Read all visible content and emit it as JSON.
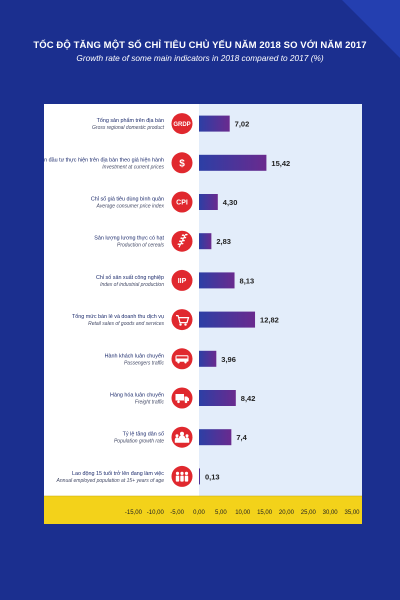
{
  "title_vi": "TỐC ĐỘ TĂNG MỘT SỐ CHỈ TIÊU CHỦ YẾU NĂM 2018 SO VỚI NĂM 2017",
  "title_en": "Growth rate of some main indicators in 2018 compared to 2017 (%)",
  "colors": {
    "background": "#1b2f8f",
    "bar_start": "#2c3fa5",
    "bar_end": "#6a2a8e",
    "icon_red": "#e0282e",
    "axis_band": "#f3d21a",
    "highlight_column": "#e3edfa"
  },
  "chart_data": {
    "type": "bar",
    "orientation": "horizontal",
    "title": "TỐC ĐỘ TĂNG MỘT SỐ CHỈ TIÊU CHỦ YẾU NĂM 2018 SO VỚI NĂM 2017",
    "subtitle": "Growth rate of some main indicators in 2018 compared to 2017 (%)",
    "xlim": [
      -15,
      35
    ],
    "ticks": [
      "-15,00",
      "-10,00",
      "-5,00",
      "0,00",
      "5,00",
      "10,00",
      "15,00",
      "20,00",
      "25,00",
      "30,00",
      "35,00"
    ],
    "grid": false,
    "items": [
      {
        "label_vi": "Tổng sản phẩm trên địa bàn",
        "label_en": "Gross regional domestic product",
        "icon": "grdp-icon",
        "icon_text": "GRDP",
        "value": 7.02,
        "value_label": "7,02"
      },
      {
        "label_vi": "Vốn đầu tư thực hiện trên địa bàn theo giá hiện hành",
        "label_en": "Investment at current prices",
        "icon": "money-bag-icon",
        "icon_text": "$",
        "value": 15.42,
        "value_label": "15,42"
      },
      {
        "label_vi": "Chỉ số giá tiêu dùng bình quân",
        "label_en": "Average consumer price index",
        "icon": "cpi-icon",
        "icon_text": "CPI",
        "value": 4.3,
        "value_label": "4,30"
      },
      {
        "label_vi": "Sản lượng lương thực có hạt",
        "label_en": "Production of cereals",
        "icon": "grain-icon",
        "icon_text": "",
        "value": 2.83,
        "value_label": "2,83"
      },
      {
        "label_vi": "Chỉ số sản xuất công nghiệp",
        "label_en": "Index of industrial production",
        "icon": "iip-icon",
        "icon_text": "IIP",
        "value": 8.13,
        "value_label": "8,13"
      },
      {
        "label_vi": "Tổng mức bán lẻ và doanh thu dịch vụ",
        "label_en": "Retail sales of goods and services",
        "icon": "shopping-cart-icon",
        "icon_text": "",
        "value": 12.82,
        "value_label": "12,82"
      },
      {
        "label_vi": "Hành khách luân chuyển",
        "label_en": "Passengers traffic",
        "icon": "bus-icon",
        "icon_text": "",
        "value": 3.96,
        "value_label": "3,96"
      },
      {
        "label_vi": "Hàng hóa luân chuyển",
        "label_en": "Freight traffic",
        "icon": "truck-icon",
        "icon_text": "",
        "value": 8.42,
        "value_label": "8,42"
      },
      {
        "label_vi": "Tỷ lệ tăng dân số",
        "label_en": "Population growth rate",
        "icon": "population-icon",
        "icon_text": "",
        "value": 7.4,
        "value_label": "7,4"
      },
      {
        "label_vi": "Lao động 15 tuổi trở lên đang làm việc",
        "label_en": "Annual employed population at 15+ years of age",
        "icon": "workers-icon",
        "icon_text": "",
        "value": 0.13,
        "value_label": "0,13"
      }
    ]
  }
}
